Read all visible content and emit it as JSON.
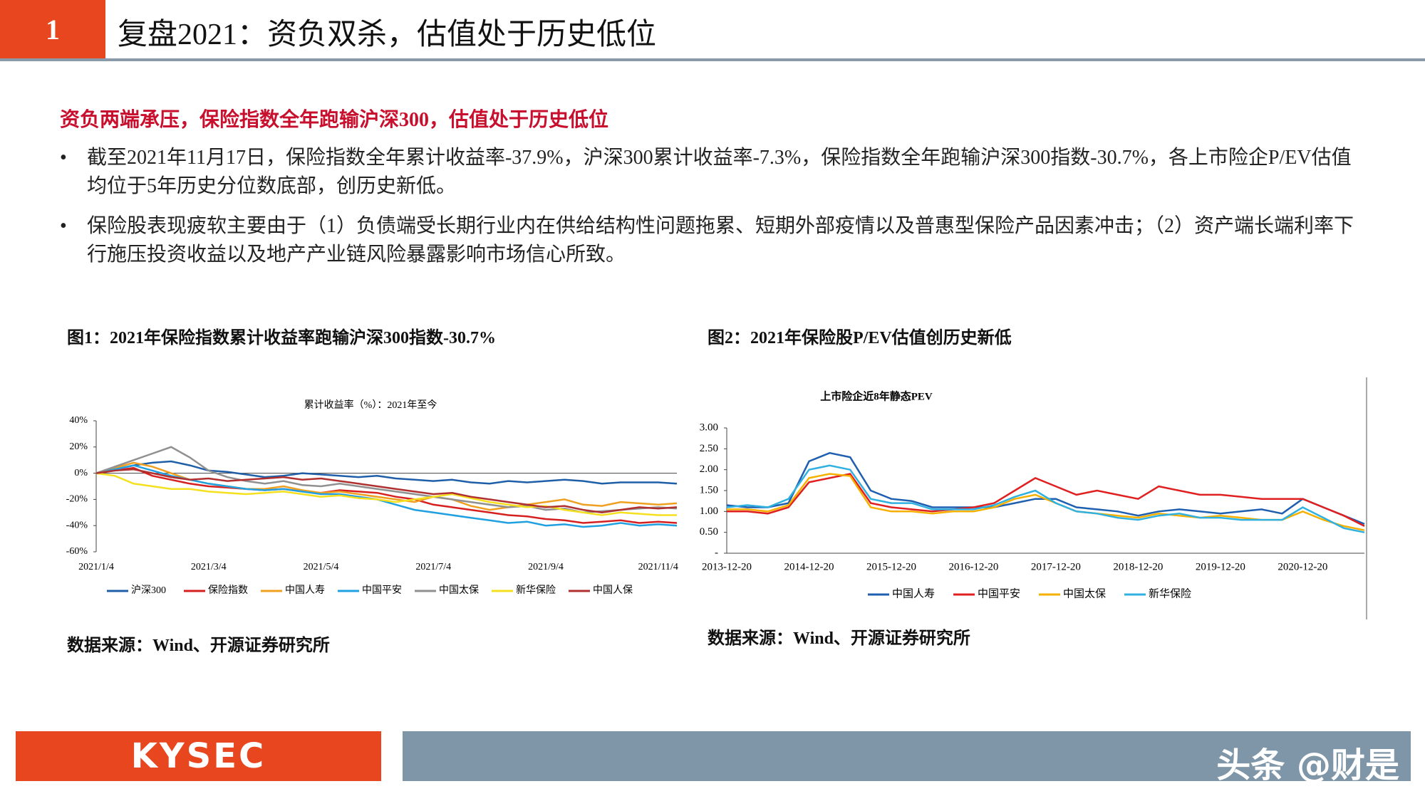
{
  "header": {
    "number": "1",
    "title": "复盘2021：资负双杀，估值处于历史低位"
  },
  "subtitle": "资负两端承压，保险指数全年跑输沪深300，估值处于历史低位",
  "bullets": [
    "截至2021年11月17日，保险指数全年累计收益率-37.9%，沪深300累计收益率-7.3%，保险指数全年跑输沪深300指数-30.7%，各上市险企P/EV估值均位于5年历史分位数底部，创历史新低。",
    "保险股表现疲软主要由于（1）负债端受长期行业内在供给结构性问题拖累、短期外部疫情以及普惠型保险产品因素冲击；（2）资产端长端利率下行施压投资收益以及地产产业链风险暴露影响市场信心所致。"
  ],
  "chart_data": [
    {
      "type": "line",
      "caption": "图1：2021年保险指数累计收益率跑输沪深300指数-30.7%",
      "title": "累计收益率（%）：2021年至今",
      "source": "数据来源：Wind、开源证券研究所",
      "legend": "bottom",
      "categories": [
        "2021/1/4",
        null,
        null,
        null,
        null,
        null,
        "2021/3/4",
        null,
        null,
        null,
        null,
        null,
        "2021/5/4",
        null,
        null,
        null,
        null,
        null,
        "2021/7/4",
        null,
        null,
        null,
        null,
        null,
        "2021/9/4",
        null,
        null,
        null,
        null,
        null,
        "2021/11/4",
        null
      ],
      "ylim": [
        -60,
        40
      ],
      "yticks": [
        {
          "value": -60,
          "label": "-60%"
        },
        {
          "value": -40,
          "label": "-40%"
        },
        {
          "value": -20,
          "label": "-20%"
        },
        {
          "value": 0,
          "label": "0%"
        },
        {
          "value": 20,
          "label": "20%"
        },
        {
          "value": 40,
          "label": "40%"
        }
      ],
      "series": [
        {
          "name": "沪深300",
          "color": "#1f5fa8",
          "values": [
            0,
            3,
            6,
            8,
            9,
            6,
            2,
            1,
            -1,
            -3,
            -2,
            0,
            -1,
            -2,
            -3,
            -2,
            -4,
            -5,
            -6,
            -5,
            -7,
            -8,
            -6,
            -7,
            -6,
            -5,
            -6,
            -8,
            -7,
            -7,
            -7,
            -8
          ]
        },
        {
          "name": "保险指数",
          "color": "#d62020",
          "values": [
            0,
            2,
            4,
            -2,
            -5,
            -8,
            -10,
            -11,
            -12,
            -13,
            -12,
            -14,
            -15,
            -13,
            -14,
            -15,
            -18,
            -20,
            -24,
            -26,
            -28,
            -30,
            -32,
            -33,
            -35,
            -36,
            -38,
            -37,
            -36,
            -38,
            -37,
            -38
          ]
        },
        {
          "name": "中国人寿",
          "color": "#f0a020",
          "values": [
            0,
            4,
            8,
            5,
            0,
            -5,
            -8,
            -10,
            -12,
            -12,
            -10,
            -13,
            -15,
            -14,
            -16,
            -18,
            -20,
            -22,
            -18,
            -20,
            -25,
            -28,
            -26,
            -24,
            -22,
            -20,
            -24,
            -25,
            -22,
            -23,
            -24,
            -23
          ]
        },
        {
          "name": "中国平安",
          "color": "#20a0e0",
          "values": [
            0,
            3,
            6,
            2,
            -2,
            -5,
            -8,
            -10,
            -12,
            -13,
            -12,
            -14,
            -16,
            -16,
            -18,
            -20,
            -24,
            -28,
            -30,
            -32,
            -34,
            -36,
            -38,
            -37,
            -40,
            -39,
            -41,
            -40,
            -38,
            -40,
            -39,
            -40
          ]
        },
        {
          "name": "中国太保",
          "color": "#909090",
          "values": [
            0,
            5,
            10,
            15,
            20,
            12,
            2,
            -3,
            -6,
            -8,
            -6,
            -9,
            -10,
            -8,
            -10,
            -12,
            -14,
            -16,
            -18,
            -20,
            -22,
            -24,
            -26,
            -25,
            -28,
            -27,
            -30,
            -29,
            -28,
            -27,
            -26,
            -27
          ]
        },
        {
          "name": "新华保险",
          "color": "#f5e020",
          "values": [
            0,
            -2,
            -8,
            -10,
            -12,
            -12,
            -14,
            -15,
            -16,
            -15,
            -14,
            -16,
            -18,
            -17,
            -19,
            -20,
            -22,
            -20,
            -18,
            -16,
            -19,
            -22,
            -24,
            -26,
            -25,
            -28,
            -30,
            -32,
            -30,
            -31,
            -32,
            -32
          ]
        },
        {
          "name": "中国人保",
          "color": "#b03030",
          "values": [
            0,
            2,
            3,
            0,
            -3,
            -5,
            -4,
            -6,
            -5,
            -4,
            -3,
            -5,
            -4,
            -6,
            -8,
            -10,
            -12,
            -14,
            -16,
            -15,
            -18,
            -20,
            -22,
            -24,
            -26,
            -25,
            -28,
            -30,
            -28,
            -26,
            -27,
            -26
          ]
        }
      ]
    },
    {
      "type": "line",
      "caption": "图2：2021年保险股P/EV估值创历史新低",
      "title": "上市险企近8年静态PEV",
      "source": "数据来源：Wind、开源证券研究所",
      "legend": "bottom",
      "categories": [
        "2013-12-20",
        null,
        null,
        null,
        "2014-12-20",
        null,
        null,
        null,
        "2015-12-20",
        null,
        null,
        null,
        "2016-12-20",
        null,
        null,
        null,
        "2017-12-20",
        null,
        null,
        null,
        "2018-12-20",
        null,
        null,
        null,
        "2019-12-20",
        null,
        null,
        null,
        "2020-12-20",
        null,
        null,
        null
      ],
      "ylim": [
        0,
        3
      ],
      "yticks": [
        {
          "value": 0,
          "label": "-"
        },
        {
          "value": 0.5,
          "label": "0.50"
        },
        {
          "value": 1,
          "label": "1.00"
        },
        {
          "value": 1.5,
          "label": "1.50"
        },
        {
          "value": 2,
          "label": "2.00"
        },
        {
          "value": 2.5,
          "label": "2.50"
        },
        {
          "value": 3,
          "label": "3.00"
        }
      ],
      "series": [
        {
          "name": "中国人寿",
          "color": "#1f5fb0",
          "values": [
            1.15,
            1.1,
            1.1,
            1.2,
            2.2,
            2.4,
            2.3,
            1.5,
            1.3,
            1.25,
            1.1,
            1.1,
            1.1,
            1.1,
            1.2,
            1.3,
            1.3,
            1.1,
            1.05,
            1.0,
            0.9,
            1.0,
            1.05,
            1.0,
            0.95,
            1.0,
            1.05,
            0.95,
            1.3,
            1.1,
            0.9,
            0.7
          ]
        },
        {
          "name": "中国平安",
          "color": "#e02020",
          "values": [
            1.0,
            1.0,
            0.95,
            1.1,
            1.7,
            1.8,
            1.9,
            1.2,
            1.1,
            1.05,
            1.0,
            1.05,
            1.1,
            1.2,
            1.5,
            1.8,
            1.6,
            1.4,
            1.5,
            1.4,
            1.3,
            1.6,
            1.5,
            1.4,
            1.4,
            1.35,
            1.3,
            1.3,
            1.3,
            1.1,
            0.9,
            0.65
          ]
        },
        {
          "name": "中国太保",
          "color": "#f5b000",
          "values": [
            1.05,
            1.05,
            1.0,
            1.15,
            1.8,
            1.9,
            1.85,
            1.1,
            1.0,
            1.0,
            0.95,
            1.0,
            1.0,
            1.1,
            1.3,
            1.4,
            1.2,
            1.0,
            0.95,
            0.9,
            0.85,
            0.95,
            0.9,
            0.85,
            0.9,
            0.85,
            0.8,
            0.8,
            1.0,
            0.8,
            0.65,
            0.55
          ]
        },
        {
          "name": "新华保险",
          "color": "#30b0e0",
          "values": [
            1.1,
            1.15,
            1.1,
            1.3,
            2.0,
            2.1,
            2.0,
            1.3,
            1.2,
            1.2,
            1.05,
            1.05,
            1.05,
            1.15,
            1.35,
            1.5,
            1.2,
            1.0,
            0.95,
            0.85,
            0.8,
            0.9,
            0.95,
            0.85,
            0.85,
            0.8,
            0.8,
            0.8,
            1.1,
            0.85,
            0.6,
            0.5
          ]
        }
      ]
    }
  ],
  "footer": {
    "logo": "KYSEC",
    "watermark": "头条 @财是"
  }
}
